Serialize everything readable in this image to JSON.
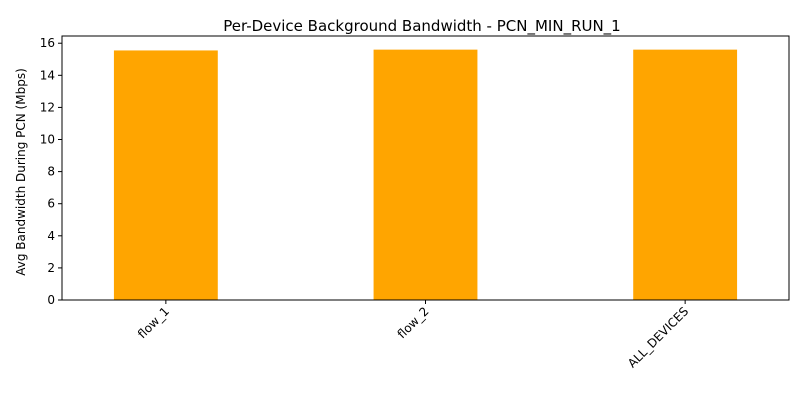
{
  "chart_data": {
    "type": "bar",
    "title": "Per-Device Background Bandwidth - PCN_MIN_RUN_1",
    "xlabel": "",
    "ylabel": "Avg Bandwidth During PCN (Mbps)",
    "categories": [
      "flow_1",
      "flow_2",
      "ALL_DEVICES"
    ],
    "values": [
      15.55,
      15.6,
      15.6
    ],
    "ylim": [
      0,
      16.45
    ],
    "yticks": [
      0,
      2,
      4,
      6,
      8,
      10,
      12,
      14,
      16
    ],
    "bar_color": "#ffa500",
    "grid": false,
    "legend": "none",
    "xtick_rotation": 45
  }
}
